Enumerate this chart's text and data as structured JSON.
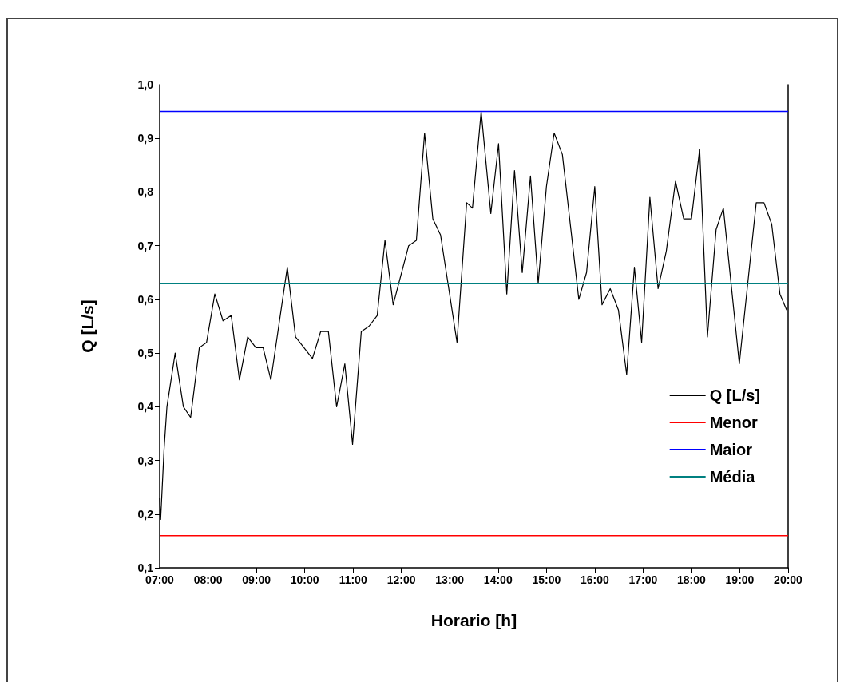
{
  "chart_data": {
    "type": "line",
    "xlabel": "Horario [h]",
    "ylabel": "Q [L/s]",
    "x": [
      7.0,
      7.02,
      7.09,
      7.15,
      7.32,
      7.49,
      7.64,
      7.82,
      7.97,
      8.14,
      8.31,
      8.48,
      8.65,
      8.82,
      8.99,
      9.14,
      9.3,
      9.64,
      9.81,
      10.16,
      10.33,
      10.49,
      10.66,
      10.83,
      10.99,
      11.17,
      11.33,
      11.5,
      11.66,
      11.83,
      12.15,
      12.31,
      12.48,
      12.65,
      12.81,
      13.15,
      13.35,
      13.47,
      13.65,
      13.85,
      14.01,
      14.18,
      14.34,
      14.5,
      14.67,
      14.83,
      15.0,
      15.16,
      15.33,
      15.67,
      15.83,
      16.0,
      16.15,
      16.32,
      16.49,
      16.66,
      16.82,
      16.97,
      17.14,
      17.31,
      17.48,
      17.67,
      17.84,
      18.0,
      18.17,
      18.33,
      18.51,
      18.66,
      18.99,
      19.34,
      19.5,
      19.66,
      19.83,
      19.97
    ],
    "series": [
      {
        "name": "Q [L/s]",
        "color": "#000000",
        "values": [
          0.23,
          0.19,
          0.32,
          0.4,
          0.5,
          0.4,
          0.38,
          0.51,
          0.52,
          0.61,
          0.56,
          0.57,
          0.45,
          0.53,
          0.51,
          0.51,
          0.45,
          0.66,
          0.53,
          0.49,
          0.54,
          0.54,
          0.4,
          0.48,
          0.33,
          0.54,
          0.55,
          0.57,
          0.71,
          0.59,
          0.7,
          0.71,
          0.91,
          0.75,
          0.72,
          0.52,
          0.78,
          0.77,
          0.95,
          0.76,
          0.89,
          0.61,
          0.84,
          0.65,
          0.83,
          0.63,
          0.81,
          0.91,
          0.87,
          0.6,
          0.65,
          0.81,
          0.59,
          0.62,
          0.58,
          0.46,
          0.66,
          0.52,
          0.79,
          0.62,
          0.69,
          0.82,
          0.75,
          0.75,
          0.88,
          0.53,
          0.73,
          0.77,
          0.48,
          0.78,
          0.78,
          0.74,
          0.61,
          0.58
        ]
      }
    ],
    "ref_lines": [
      {
        "axis": "y",
        "value": 0.16,
        "label": "Menor",
        "color": "#ff0000"
      },
      {
        "axis": "y",
        "value": 0.95,
        "label": "Maior",
        "color": "#0000ff"
      },
      {
        "axis": "y",
        "value": 0.63,
        "label": "Média",
        "color": "#008080"
      }
    ],
    "xlim": [
      7,
      20
    ],
    "xticks": [
      {
        "value": 7,
        "label": "07:00"
      },
      {
        "value": 8,
        "label": "08:00"
      },
      {
        "value": 9,
        "label": "09:00"
      },
      {
        "value": 10,
        "label": "10:00"
      },
      {
        "value": 11,
        "label": "11:00"
      },
      {
        "value": 12,
        "label": "12:00"
      },
      {
        "value": 13,
        "label": "13:00"
      },
      {
        "value": 14,
        "label": "14:00"
      },
      {
        "value": 15,
        "label": "15:00"
      },
      {
        "value": 16,
        "label": "16:00"
      },
      {
        "value": 17,
        "label": "17:00"
      },
      {
        "value": 18,
        "label": "18:00"
      },
      {
        "value": 19,
        "label": "19:00"
      },
      {
        "value": 20,
        "label": "20:00"
      }
    ],
    "ylim": [
      0.1,
      1.0
    ],
    "yticks": [
      {
        "value": 0.1,
        "label": "0,1"
      },
      {
        "value": 0.2,
        "label": "0,2"
      },
      {
        "value": 0.3,
        "label": "0,3"
      },
      {
        "value": 0.4,
        "label": "0,4"
      },
      {
        "value": 0.5,
        "label": "0,5"
      },
      {
        "value": 0.6,
        "label": "0,6"
      },
      {
        "value": 0.7,
        "label": "0,7"
      },
      {
        "value": 0.8,
        "label": "0,8"
      },
      {
        "value": 0.9,
        "label": "0,9"
      },
      {
        "value": 1.0,
        "label": "1,0"
      }
    ],
    "grid": false,
    "legend": "right",
    "marker": "none",
    "line_style": "solid"
  }
}
